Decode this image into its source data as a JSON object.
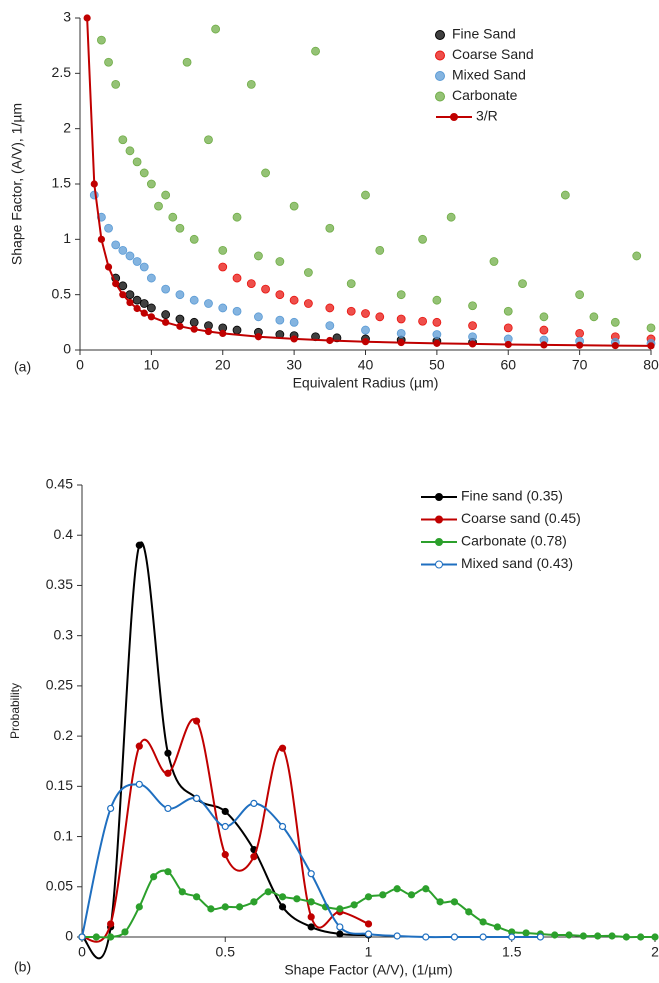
{
  "chart_data": [
    {
      "type": "scatter",
      "annotation": "(a)",
      "xlabel": "Equivalent Radius (µm)",
      "ylabel": "Shape Factor, (A/V), 1/µm",
      "xlim": [
        0,
        80
      ],
      "xticks": [
        0,
        10,
        20,
        30,
        40,
        50,
        60,
        70,
        80
      ],
      "ylim": [
        0,
        3
      ],
      "yticks": [
        0,
        0.5,
        1,
        1.5,
        2,
        2.5,
        3
      ],
      "legend": "top-right",
      "series": [
        {
          "name": "Fine Sand",
          "color": "#000000",
          "type": "scatter",
          "x": [
            5,
            6,
            7,
            8,
            9,
            10,
            12,
            14,
            16,
            18,
            20,
            22,
            25,
            28,
            30,
            33,
            36,
            40,
            45,
            50,
            55
          ],
          "values": [
            0.65,
            0.58,
            0.5,
            0.45,
            0.42,
            0.38,
            0.32,
            0.28,
            0.25,
            0.22,
            0.2,
            0.18,
            0.16,
            0.14,
            0.13,
            0.12,
            0.11,
            0.1,
            0.09,
            0.08,
            0.07
          ]
        },
        {
          "name": "Coarse Sand",
          "color": "#e8140f",
          "type": "scatter",
          "x": [
            20,
            22,
            24,
            26,
            28,
            30,
            32,
            35,
            38,
            40,
            42,
            45,
            48,
            50,
            55,
            60,
            65,
            70,
            75,
            80
          ],
          "values": [
            0.75,
            0.65,
            0.6,
            0.55,
            0.5,
            0.45,
            0.42,
            0.38,
            0.35,
            0.33,
            0.3,
            0.28,
            0.26,
            0.25,
            0.22,
            0.2,
            0.18,
            0.15,
            0.12,
            0.1
          ]
        },
        {
          "name": "Mixed Sand",
          "color": "#5b9bd5",
          "type": "scatter",
          "x": [
            2,
            3,
            4,
            5,
            6,
            7,
            8,
            9,
            10,
            12,
            14,
            16,
            18,
            20,
            22,
            25,
            28,
            30,
            35,
            40,
            45,
            50,
            55,
            60,
            65,
            70,
            75,
            80
          ],
          "values": [
            1.4,
            1.2,
            1.1,
            0.95,
            0.9,
            0.85,
            0.8,
            0.75,
            0.65,
            0.55,
            0.5,
            0.45,
            0.42,
            0.38,
            0.35,
            0.3,
            0.27,
            0.25,
            0.22,
            0.18,
            0.15,
            0.14,
            0.12,
            0.1,
            0.09,
            0.08,
            0.07,
            0.06
          ]
        },
        {
          "name": "Carbonate",
          "color": "#70ad47",
          "type": "scatter",
          "x": [
            3,
            4,
            5,
            6,
            7,
            8,
            9,
            10,
            11,
            12,
            13,
            14,
            15,
            16,
            18,
            19,
            20,
            22,
            24,
            25,
            26,
            28,
            30,
            32,
            33,
            35,
            38,
            40,
            42,
            45,
            48,
            50,
            52,
            55,
            58,
            60,
            62,
            65,
            68,
            70,
            72,
            75,
            78,
            80
          ],
          "values": [
            2.8,
            2.6,
            2.4,
            1.9,
            1.8,
            1.7,
            1.6,
            1.5,
            1.3,
            1.4,
            1.2,
            1.1,
            2.6,
            1.0,
            1.9,
            2.9,
            0.9,
            1.2,
            2.4,
            0.85,
            1.6,
            0.8,
            1.3,
            0.7,
            2.7,
            1.1,
            0.6,
            1.4,
            0.9,
            0.5,
            1.0,
            0.45,
            1.2,
            0.4,
            0.8,
            0.35,
            0.6,
            0.3,
            1.4,
            0.5,
            0.3,
            0.25,
            0.85,
            0.2
          ]
        },
        {
          "name": "3/R",
          "color": "#c00000",
          "type": "line",
          "x": [
            1,
            2,
            3,
            4,
            5,
            6,
            7,
            8,
            9,
            10,
            12,
            14,
            16,
            18,
            20,
            25,
            30,
            35,
            40,
            45,
            50,
            55,
            60,
            65,
            70,
            75,
            80
          ],
          "values": [
            3,
            1.5,
            1,
            0.75,
            0.6,
            0.5,
            0.429,
            0.375,
            0.333,
            0.3,
            0.25,
            0.214,
            0.188,
            0.167,
            0.15,
            0.12,
            0.1,
            0.086,
            0.075,
            0.067,
            0.06,
            0.055,
            0.05,
            0.046,
            0.043,
            0.04,
            0.0375
          ]
        }
      ]
    },
    {
      "type": "line",
      "annotation": "(b)",
      "xlabel": "Shape Factor (A/V), (1/µm)",
      "ylabel": "Probability",
      "xlim": [
        0,
        2
      ],
      "xticks": [
        0,
        0.5,
        1,
        1.5,
        2
      ],
      "ylim": [
        0,
        0.45
      ],
      "yticks": [
        0,
        0.05,
        0.1,
        0.15,
        0.2,
        0.25,
        0.3,
        0.35,
        0.4,
        0.45
      ],
      "legend": "top-right",
      "smooth": true,
      "series": [
        {
          "name": "Fine sand (0.35)",
          "color": "#000000",
          "marker": "filled",
          "x": [
            0,
            0.1,
            0.2,
            0.3,
            0.4,
            0.5,
            0.6,
            0.7,
            0.8,
            0.9,
            1.0
          ],
          "values": [
            0,
            0.01,
            0.39,
            0.183,
            0.138,
            0.125,
            0.087,
            0.03,
            0.01,
            0.003,
            0.002
          ]
        },
        {
          "name": "Coarse sand (0.45)",
          "color": "#c00000",
          "marker": "filled",
          "x": [
            0,
            0.1,
            0.2,
            0.3,
            0.4,
            0.5,
            0.6,
            0.7,
            0.8,
            0.9,
            1.0
          ],
          "values": [
            0,
            0.013,
            0.19,
            0.163,
            0.215,
            0.082,
            0.08,
            0.188,
            0.02,
            0.025,
            0.013
          ]
        },
        {
          "name": "Carbonate (0.78)",
          "color": "#2ca02c",
          "marker": "filled",
          "x": [
            0,
            0.05,
            0.1,
            0.15,
            0.2,
            0.25,
            0.3,
            0.35,
            0.4,
            0.45,
            0.5,
            0.55,
            0.6,
            0.65,
            0.7,
            0.75,
            0.8,
            0.85,
            0.9,
            0.95,
            1.0,
            1.05,
            1.1,
            1.15,
            1.2,
            1.25,
            1.3,
            1.35,
            1.4,
            1.45,
            1.5,
            1.55,
            1.6,
            1.65,
            1.7,
            1.75,
            1.8,
            1.85,
            1.9,
            1.95,
            2.0
          ],
          "values": [
            0,
            0,
            0,
            0.005,
            0.03,
            0.06,
            0.065,
            0.045,
            0.04,
            0.028,
            0.03,
            0.03,
            0.035,
            0.045,
            0.04,
            0.038,
            0.035,
            0.03,
            0.028,
            0.032,
            0.04,
            0.042,
            0.048,
            0.042,
            0.048,
            0.035,
            0.035,
            0.025,
            0.015,
            0.01,
            0.005,
            0.004,
            0.003,
            0.002,
            0.002,
            0.001,
            0.001,
            0.001,
            0,
            0,
            0
          ]
        },
        {
          "name": "Mixed sand (0.43)",
          "color": "#1f6fc0",
          "marker": "open",
          "x": [
            0,
            0.1,
            0.2,
            0.3,
            0.4,
            0.5,
            0.6,
            0.7,
            0.8,
            0.9,
            1.0,
            1.1,
            1.2,
            1.3,
            1.4,
            1.5,
            1.6
          ],
          "values": [
            0,
            0.128,
            0.152,
            0.128,
            0.138,
            0.11,
            0.133,
            0.11,
            0.063,
            0.01,
            0.003,
            0.001,
            0,
            0,
            0,
            0,
            0
          ]
        }
      ]
    }
  ]
}
